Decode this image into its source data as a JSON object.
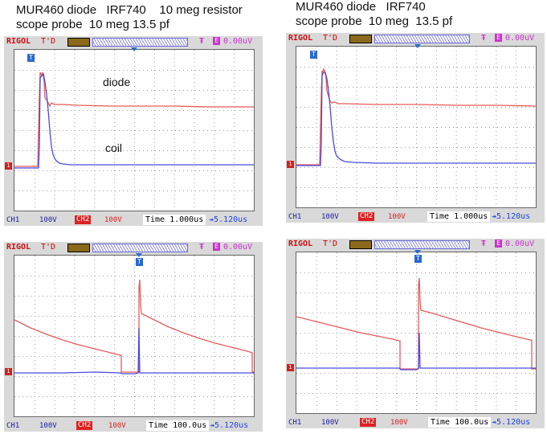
{
  "captions": {
    "left_line1": "MUR460 diode   IRF740    10 meg resistor",
    "left_line2": "scope probe  10 meg 13.5 pf",
    "right_line1": "MUR460 diode   IRF740",
    "right_line2": "scope probe  10 meg  13.5 pf"
  },
  "scope_common": {
    "brand": "RIGOL",
    "trigger_mode": "T'D",
    "trigger_edge": "Ŧ",
    "trigger_source": "E",
    "trigger_level": "0.00uV",
    "ch1_label": "CH1",
    "ch1_scale": "100V",
    "ch2_label": "CH2",
    "ch2_scale": "100V",
    "trigger_offset": "↠5.120us"
  },
  "scopes": [
    {
      "id": "top-left",
      "timebase": "Time 1.000us",
      "annotations": {
        "diode": "diode",
        "coil": "coil"
      }
    },
    {
      "id": "top-right",
      "timebase": "Time 1.000us"
    },
    {
      "id": "bottom-left",
      "timebase": "Time 100.0us"
    },
    {
      "id": "bottom-right",
      "timebase": "Time 100.0us"
    }
  ],
  "colors": {
    "ch1": "#4a4ae0",
    "ch2": "#e85a5a",
    "grid_dots": "#9a9a9a",
    "frame": "#d9d9d9"
  }
}
